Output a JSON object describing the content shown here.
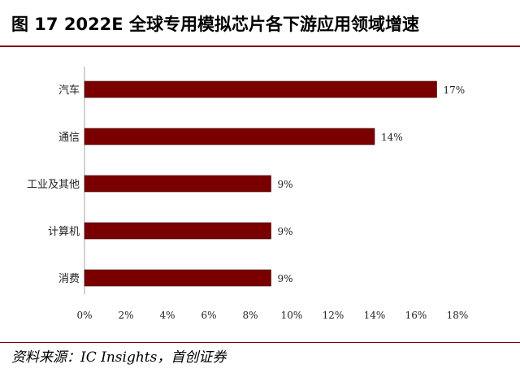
{
  "title": "图  17 2022E 全球专用模拟芯片各下游应用领域增速",
  "source": "资料来源：IC Insights，首创证券",
  "colors": {
    "bar": "#7a0000",
    "rule": "#7a0000"
  },
  "chart_data": {
    "type": "bar",
    "orientation": "horizontal",
    "categories": [
      "汽车",
      "通信",
      "工业及其他",
      "计算机",
      "消费"
    ],
    "values": [
      17,
      14,
      9,
      9,
      9
    ],
    "data_labels": [
      "17%",
      "14%",
      "9%",
      "9%",
      "9%"
    ],
    "xlim": [
      0,
      18
    ],
    "x_ticks": [
      "0%",
      "2%",
      "4%",
      "6%",
      "8%",
      "10%",
      "12%",
      "14%",
      "16%",
      "18%"
    ],
    "grid": false,
    "legend": "none",
    "title": "",
    "xlabel": "",
    "ylabel": ""
  }
}
